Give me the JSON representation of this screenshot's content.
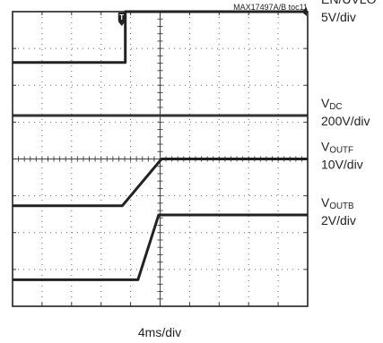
{
  "chart_data": {
    "type": "line",
    "figure_id": "MAX17497A/B toc11",
    "xlabel": "4ms/div",
    "x_divisions": 10,
    "y_divisions": 8,
    "grid": true,
    "trigger_marker": "T",
    "series": [
      {
        "name": "EN/UVLO",
        "sub": "",
        "scale": "5V/div",
        "color": "#222222",
        "points": [
          [
            0,
            2.62
          ],
          [
            3.82,
            2.62
          ],
          [
            3.82,
            4.0
          ],
          [
            10,
            4.0
          ]
        ]
      },
      {
        "name": "V",
        "sub": "DC",
        "scale": "200V/div",
        "color": "#333333",
        "points": [
          [
            0,
            1.18
          ],
          [
            10,
            1.18
          ]
        ]
      },
      {
        "name": "V",
        "sub": "OUTF",
        "scale": "10V/div",
        "color": "#222222",
        "points": [
          [
            0,
            -1.27
          ],
          [
            3.72,
            -1.27
          ],
          [
            5.05,
            0.0
          ],
          [
            10,
            0.0
          ]
        ]
      },
      {
        "name": "V",
        "sub": "OUTB",
        "scale": "2V/div",
        "color": "#222222",
        "points": [
          [
            0,
            -3.28
          ],
          [
            4.25,
            -3.28
          ],
          [
            4.95,
            -1.52
          ],
          [
            10,
            -1.52
          ]
        ]
      }
    ]
  }
}
